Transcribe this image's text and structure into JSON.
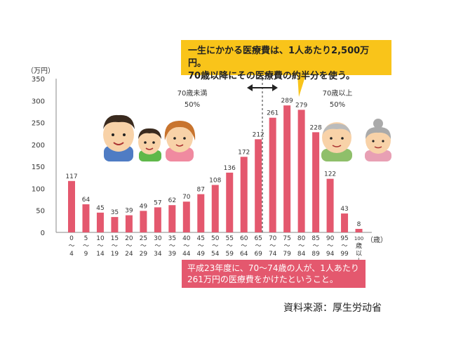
{
  "chart_data": {
    "type": "bar",
    "y_unit": "（万円）",
    "x_unit": "（歳）",
    "ylim": [
      0,
      350
    ],
    "yticks": [
      0,
      50,
      100,
      150,
      200,
      250,
      300,
      350
    ],
    "categories": [
      [
        "0",
        "～",
        "4"
      ],
      [
        "5",
        "～",
        "9"
      ],
      [
        "10",
        "～",
        "14"
      ],
      [
        "15",
        "～",
        "19"
      ],
      [
        "20",
        "～",
        "24"
      ],
      [
        "25",
        "～",
        "29"
      ],
      [
        "30",
        "～",
        "34"
      ],
      [
        "35",
        "～",
        "39"
      ],
      [
        "40",
        "～",
        "44"
      ],
      [
        "45",
        "～",
        "49"
      ],
      [
        "50",
        "～",
        "54"
      ],
      [
        "55",
        "～",
        "59"
      ],
      [
        "60",
        "～",
        "64"
      ],
      [
        "65",
        "～",
        "69"
      ],
      [
        "70",
        "～",
        "74"
      ],
      [
        "75",
        "～",
        "79"
      ],
      [
        "80",
        "～",
        "84"
      ],
      [
        "85",
        "～",
        "89"
      ],
      [
        "90",
        "～",
        "94"
      ],
      [
        "95",
        "～",
        "99"
      ],
      [
        "100",
        "歳",
        "以",
        "上"
      ]
    ],
    "values": [
      117,
      64,
      45,
      35,
      39,
      49,
      57,
      62,
      70,
      87,
      108,
      136,
      172,
      212,
      261,
      289,
      279,
      228,
      122,
      43,
      8
    ],
    "bar_color": "#e4586e",
    "grid": false
  },
  "annotations": {
    "left_group_label": "70歳未満",
    "left_group_pct": "50%",
    "right_group_label": "70歳以上",
    "right_group_pct": "50%",
    "top_callout_line1": "一生にかかる医療費は、1人あたり2,500万円。",
    "top_callout_line2": "70歳以降にその医療費の約半分を使う。",
    "bottom_callout_line1": "平成23年度に、70～74歳の人が、1人あたり",
    "bottom_callout_line2": "261万円の医療費をかけたということ。",
    "source": "資料来源：厚生労动省"
  },
  "colors": {
    "bar": "#e4586e",
    "callout_top": "#f9c41a",
    "callout_bottom": "#e4586e"
  }
}
